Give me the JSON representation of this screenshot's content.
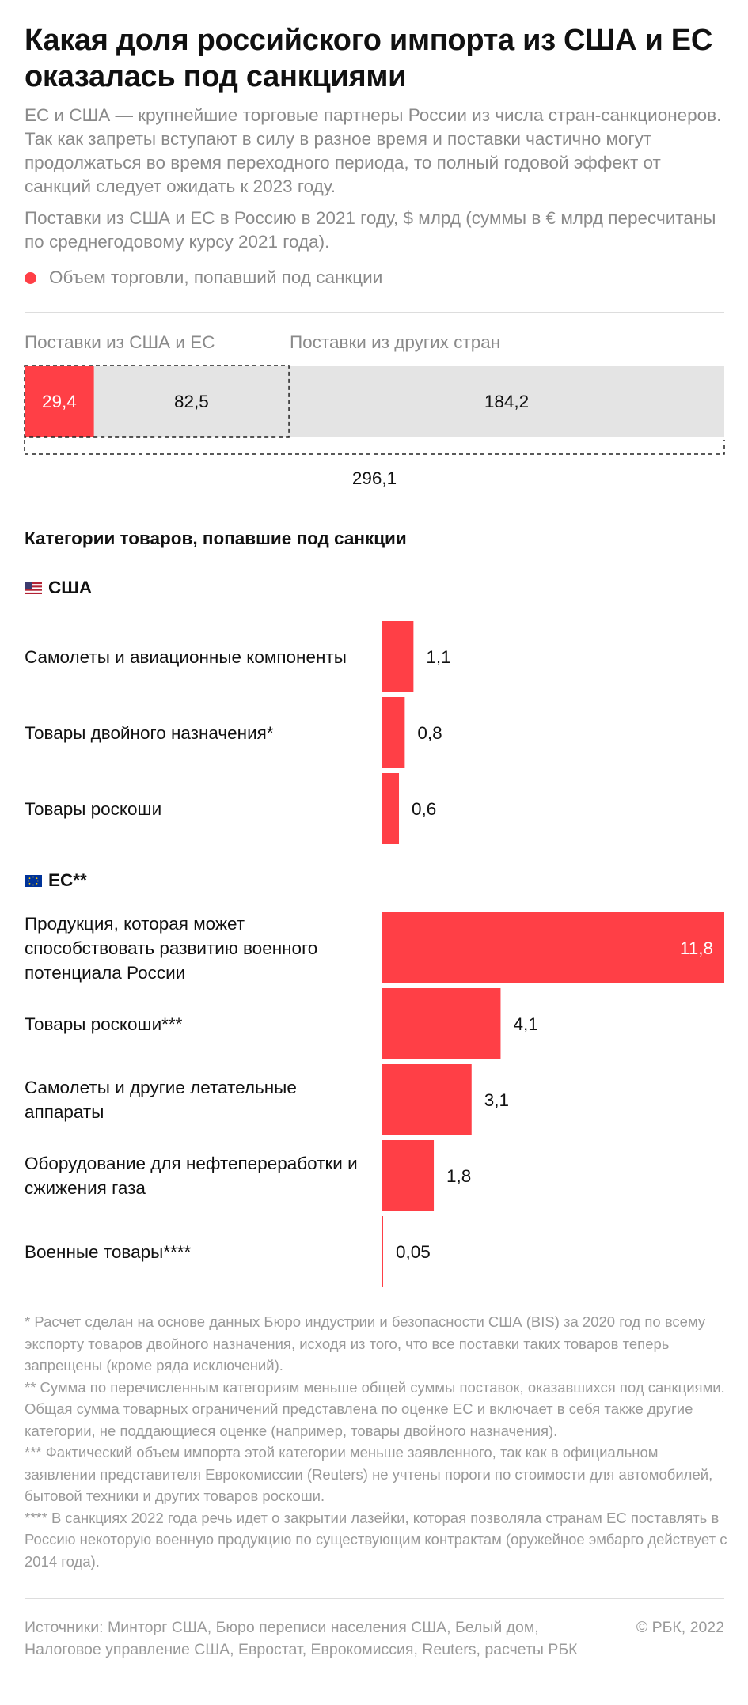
{
  "title": "Какая доля российского импорта из США и ЕС оказалась под санкциями",
  "lead": "ЕС и США — крупнейшие торговые партнеры России из числа стран-санкционеров. Так как запреты вступают в силу в разное время и поставки частично могут продолжаться во время переходного периода, то полный годовой эффект от санкций следует ожидать к 2023 году.",
  "subtitle": "Поставки из США и ЕС в Россию в 2021 году, $ млрд (суммы в € млрд пересчитаны по среднегодовому курсу 2021 года).",
  "legend": "Объем торговли, попавший под санкции",
  "colors": {
    "sanctioned": "#ff3f46",
    "other": "#e4e4e4"
  },
  "chart_data": [
    {
      "type": "bar",
      "orientation": "horizontal-stacked",
      "group_labels": [
        "Поставки из США и ЕС",
        "Поставки из других стран"
      ],
      "segments": [
        {
          "name": "Объем торговли, попавший под санкции",
          "value": 29.4,
          "label": "29,4"
        },
        {
          "value": 82.5,
          "label": "82,5"
        },
        {
          "value": 184.2,
          "label": "184,2"
        }
      ],
      "total": 296.1,
      "total_label": "296,1"
    },
    {
      "type": "bar",
      "orientation": "horizontal",
      "title": "Категории товаров, попавшие под санкции",
      "xlim": [
        0,
        11.8
      ],
      "groups": [
        {
          "name": "США",
          "flag": "us-flag-icon",
          "items": [
            {
              "category": "Самолеты и авиационные компоненты",
              "value": 1.1,
              "label": "1,1"
            },
            {
              "category": "Товары двойного назначения*",
              "value": 0.8,
              "label": "0,8"
            },
            {
              "category": "Товары роскоши",
              "value": 0.6,
              "label": "0,6"
            }
          ]
        },
        {
          "name": "ЕС**",
          "flag": "eu-flag-icon",
          "items": [
            {
              "category": "Продукция, которая может способствовать развитию военного потенциала России",
              "value": 11.8,
              "label": "11,8"
            },
            {
              "category": "Товары роскоши***",
              "value": 4.1,
              "label": "4,1"
            },
            {
              "category": "Самолеты и другие летательные аппараты",
              "value": 3.1,
              "label": "3,1"
            },
            {
              "category": "Оборудование для нефтепереработки и сжижения газа",
              "value": 1.8,
              "label": "1,8"
            },
            {
              "category": "Военные товары****",
              "value": 0.05,
              "label": "0,05"
            }
          ]
        }
      ]
    }
  ],
  "footnotes": [
    "* Расчет сделан на основе данных Бюро индустрии и безопасности США (BIS) за 2020 год по всему экспорту товаров двойного назначения, исходя из того, что все поставки таких товаров теперь запрещены (кроме ряда исключений).",
    "** Сумма по перечисленным категориям меньше общей суммы поставок, оказавшихся под санкциями. Общая сумма товарных ограничений представлена по оценке ЕС и включает в себя также другие категории, не поддающиеся оценке (например, товары двойного назначения).",
    "*** Фактический объем импорта этой категории меньше заявленного, так как в официальном заявлении представителя Еврокомиссии (Reuters) не учтены пороги по стоимости для автомобилей, бытовой техники и других товаров роскоши.",
    "**** В санкциях 2022 года речь идет о закрытии лазейки, которая позволяла странам ЕС поставлять в Россию некоторую военную продукцию по существующим контрактам (оружейное эмбарго действует с 2014 года)."
  ],
  "sources": "Источники: Минторг США, Бюро переписи населения США, Белый дом, Налоговое управление США, Евростат, Еврокомиссия, Reuters, расчеты РБК",
  "copyright": "© РБК, 2022"
}
